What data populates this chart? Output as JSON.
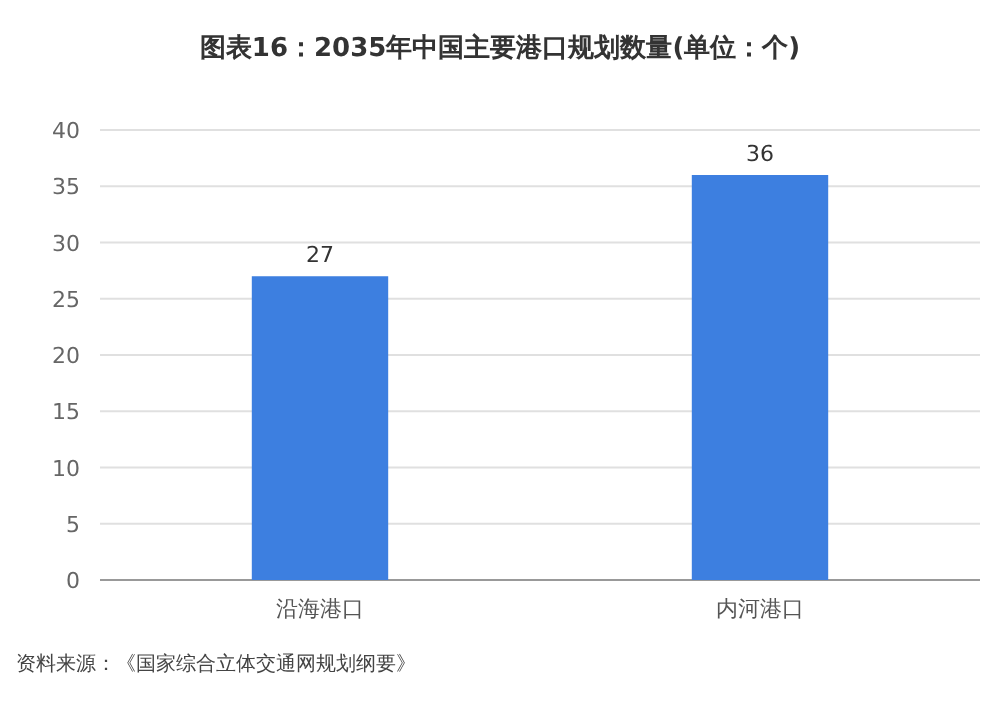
{
  "chart_data": {
    "type": "bar",
    "title": "图表16：2035年中国主要港口规划数量(单位：个)",
    "categories": [
      "沿海港口",
      "内河港口"
    ],
    "values": [
      27,
      36
    ],
    "color": "#3d7fe0",
    "ylim": [
      0,
      40
    ],
    "yticks": [
      0,
      5,
      10,
      15,
      20,
      25,
      30,
      35,
      40
    ],
    "grid": "y",
    "data_labels": true,
    "annotations": [
      "资料来源：《国家综合立体交通网规划纲要》"
    ]
  }
}
